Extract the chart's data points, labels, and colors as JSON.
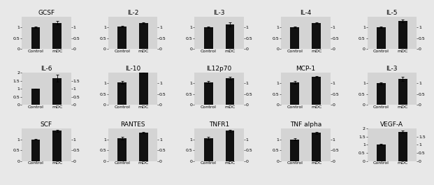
{
  "panels": [
    {
      "title": "GCSF",
      "control": 1.0,
      "mDC": 1.22,
      "control_err": 0.03,
      "mDC_err": 0.08,
      "ylim": [
        0,
        1.5
      ],
      "yticks_l": [
        0,
        0.5,
        1
      ],
      "yticks_r": [
        0,
        0.5,
        1
      ]
    },
    {
      "title": "IL-2",
      "control": 1.05,
      "mDC": 1.2,
      "control_err": 0.03,
      "mDC_err": 0.04,
      "ylim": [
        0,
        1.5
      ],
      "yticks_l": [
        0,
        0.5,
        1
      ],
      "yticks_r": [
        0,
        0.5,
        1
      ]
    },
    {
      "title": "IL-3",
      "control": 1.0,
      "mDC": 1.15,
      "control_err": 0.03,
      "mDC_err": 0.1,
      "ylim": [
        0,
        1.5
      ],
      "yticks_l": [
        0,
        0.5,
        1
      ],
      "yticks_r": [
        0,
        0.5,
        1
      ]
    },
    {
      "title": "IL-4",
      "control": 1.0,
      "mDC": 1.2,
      "control_err": 0.03,
      "mDC_err": 0.04,
      "ylim": [
        0,
        1.5
      ],
      "yticks_l": [
        0,
        0.5,
        1
      ],
      "yticks_r": [
        0,
        0.5,
        1
      ]
    },
    {
      "title": "IL-5",
      "control": 1.0,
      "mDC": 1.3,
      "control_err": 0.03,
      "mDC_err": 0.07,
      "ylim": [
        0,
        1.5
      ],
      "yticks_l": [
        0,
        0.5,
        1
      ],
      "yticks_r": [
        0,
        0.5,
        1
      ]
    },
    {
      "title": "IL-6",
      "control": 1.0,
      "mDC": 1.65,
      "control_err": 0.03,
      "mDC_err": 0.2,
      "ylim": [
        0,
        2.0
      ],
      "yticks_l": [
        0,
        0.5,
        1,
        1.5,
        2
      ],
      "yticks_r": [
        0,
        0.5,
        1,
        1.5
      ]
    },
    {
      "title": "IL-10",
      "control": 1.05,
      "mDC": 1.55,
      "control_err": 0.07,
      "mDC_err": 0.06,
      "ylim": [
        0,
        1.5
      ],
      "yticks_l": [
        0,
        0.5,
        1
      ],
      "yticks_r": [
        0,
        0.5,
        1
      ]
    },
    {
      "title": "IL12p70",
      "control": 1.05,
      "mDC": 1.25,
      "control_err": 0.05,
      "mDC_err": 0.06,
      "ylim": [
        0,
        1.5
      ],
      "yticks_l": [
        0,
        0.5,
        1
      ],
      "yticks_r": [
        0,
        0.5,
        1
      ]
    },
    {
      "title": "MCP-1",
      "control": 1.05,
      "mDC": 1.3,
      "control_err": 0.07,
      "mDC_err": 0.04,
      "ylim": [
        0,
        1.5
      ],
      "yticks_l": [
        0,
        0.5,
        1
      ],
      "yticks_r": [
        0,
        0.5,
        1
      ]
    },
    {
      "title": "IL-3",
      "control": 1.0,
      "mDC": 1.2,
      "control_err": 0.05,
      "mDC_err": 0.1,
      "ylim": [
        0,
        1.5
      ],
      "yticks_l": [
        0,
        0.5,
        1
      ],
      "yticks_r": [
        0,
        0.5,
        1
      ]
    },
    {
      "title": "SCF",
      "control": 1.0,
      "mDC": 1.4,
      "control_err": 0.03,
      "mDC_err": 0.05,
      "ylim": [
        0,
        1.5
      ],
      "yticks_l": [
        0,
        0.5,
        1
      ],
      "yticks_r": [
        0,
        0.5,
        1
      ]
    },
    {
      "title": "RANTES",
      "control": 1.05,
      "mDC": 1.3,
      "control_err": 0.05,
      "mDC_err": 0.04,
      "ylim": [
        0,
        1.5
      ],
      "yticks_l": [
        0,
        0.5,
        1
      ],
      "yticks_r": [
        0,
        0.5,
        1
      ]
    },
    {
      "title": "TNFR1",
      "control": 1.05,
      "mDC": 1.4,
      "control_err": 0.05,
      "mDC_err": 0.05,
      "ylim": [
        0,
        1.5
      ],
      "yticks_l": [
        0,
        0.5,
        1
      ],
      "yticks_r": [
        0,
        0.5,
        1
      ]
    },
    {
      "title": "TNF alpha",
      "control": 1.0,
      "mDC": 1.3,
      "control_err": 0.05,
      "mDC_err": 0.05,
      "ylim": [
        0,
        1.5
      ],
      "yticks_l": [
        0,
        0.5,
        1
      ],
      "yticks_r": [
        0,
        0.5,
        1
      ]
    },
    {
      "title": "VEGF-A",
      "control": 1.0,
      "mDC": 1.8,
      "control_err": 0.05,
      "mDC_err": 0.06,
      "ylim": [
        0,
        2.0
      ],
      "yticks_l": [
        0,
        0.5,
        1,
        1.5,
        2
      ],
      "yticks_r": [
        0,
        0.5,
        1,
        1.5
      ]
    }
  ],
  "bar_color": "#111111",
  "bg_color": "#d4d4d4",
  "fig_bg_color": "#e8e8e8",
  "nrows": 3,
  "ncols": 5,
  "bar_width": 0.42,
  "title_fontsize": 6.5,
  "tick_fontsize": 4.5,
  "xlabel_fontsize": 4.5
}
